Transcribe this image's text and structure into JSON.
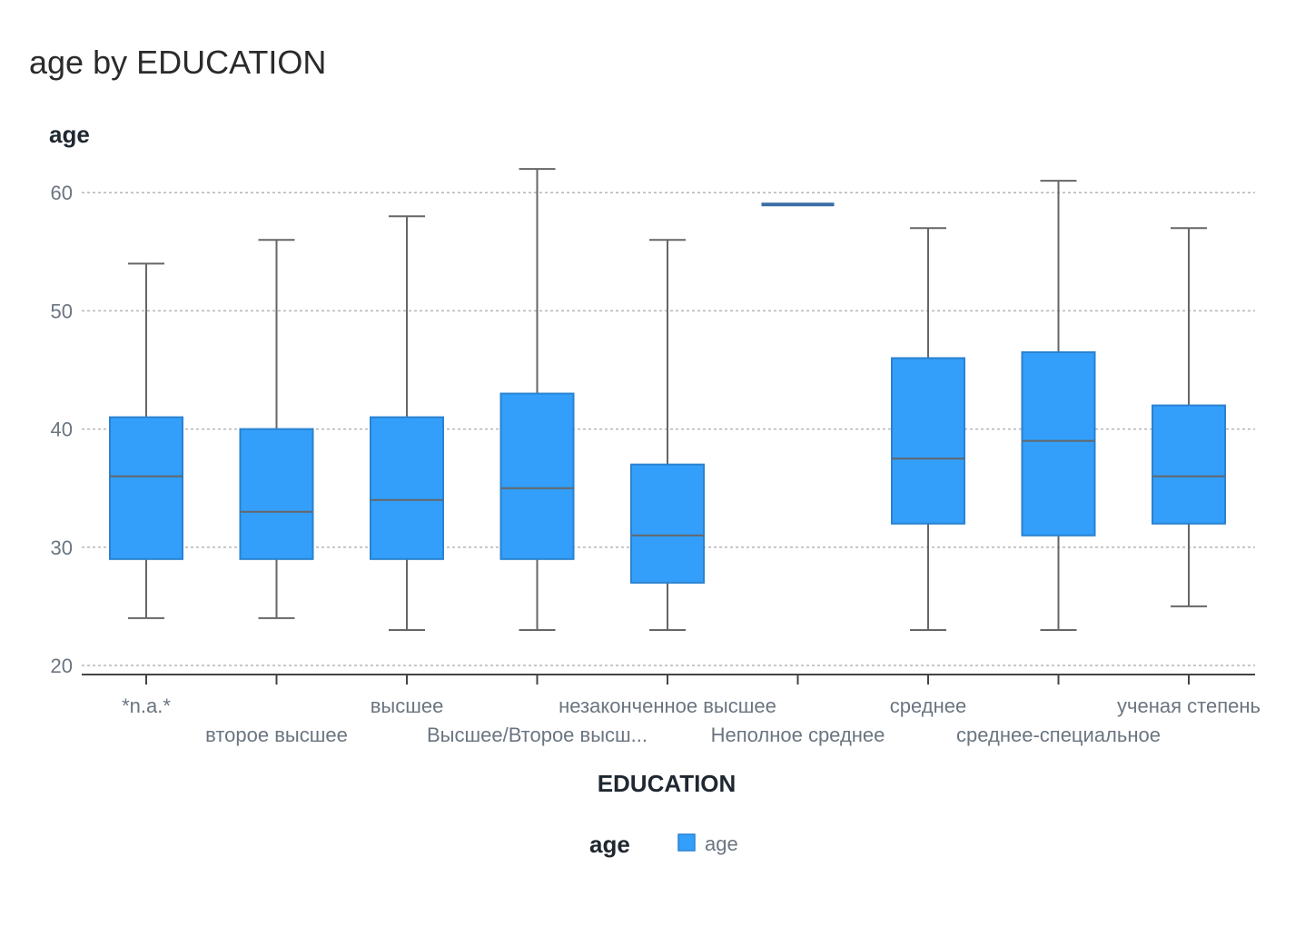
{
  "chart_data": {
    "type": "boxplot",
    "title": "age by EDUCATION",
    "xlabel": "EDUCATION",
    "ylabel": "age",
    "ylim": [
      20,
      62
    ],
    "yticks": [
      20,
      30,
      40,
      50,
      60
    ],
    "grid": true,
    "legend": {
      "title": "age",
      "entries": [
        "age"
      ],
      "position": "bottom"
    },
    "colors": {
      "box": "#339ffb",
      "box_stroke": "#2a82d0",
      "whisker": "#666666",
      "grid": "#b5b5b5",
      "axis": "#444444",
      "flat_box": "#3a6ea5"
    },
    "categories": [
      "*n.a.*",
      "второе высшее",
      "высшее",
      "Высшее/Второе высш...",
      "незаконченное высшее",
      "Неполное среднее",
      "среднее",
      "среднее-специальное",
      "ученая степень"
    ],
    "series": [
      {
        "name": "age",
        "boxes": [
          {
            "min": 24,
            "q1": 29,
            "median": 36,
            "q3": 41,
            "max": 54
          },
          {
            "min": 24,
            "q1": 29,
            "median": 33,
            "q3": 40,
            "max": 56
          },
          {
            "min": 23,
            "q1": 29,
            "median": 34,
            "q3": 41,
            "max": 58
          },
          {
            "min": 23,
            "q1": 29,
            "median": 35,
            "q3": 43,
            "max": 62
          },
          {
            "min": 23,
            "q1": 27,
            "median": 31,
            "q3": 37,
            "max": 56
          },
          {
            "min": 59,
            "q1": 59,
            "median": 59,
            "q3": 59,
            "max": 59
          },
          {
            "min": 23,
            "q1": 32,
            "median": 37.5,
            "q3": 46,
            "max": 57
          },
          {
            "min": 23,
            "q1": 31,
            "median": 39,
            "q3": 46.5,
            "max": 61
          },
          {
            "min": 25,
            "q1": 32,
            "median": 36,
            "q3": 42,
            "max": 57
          }
        ]
      }
    ]
  }
}
